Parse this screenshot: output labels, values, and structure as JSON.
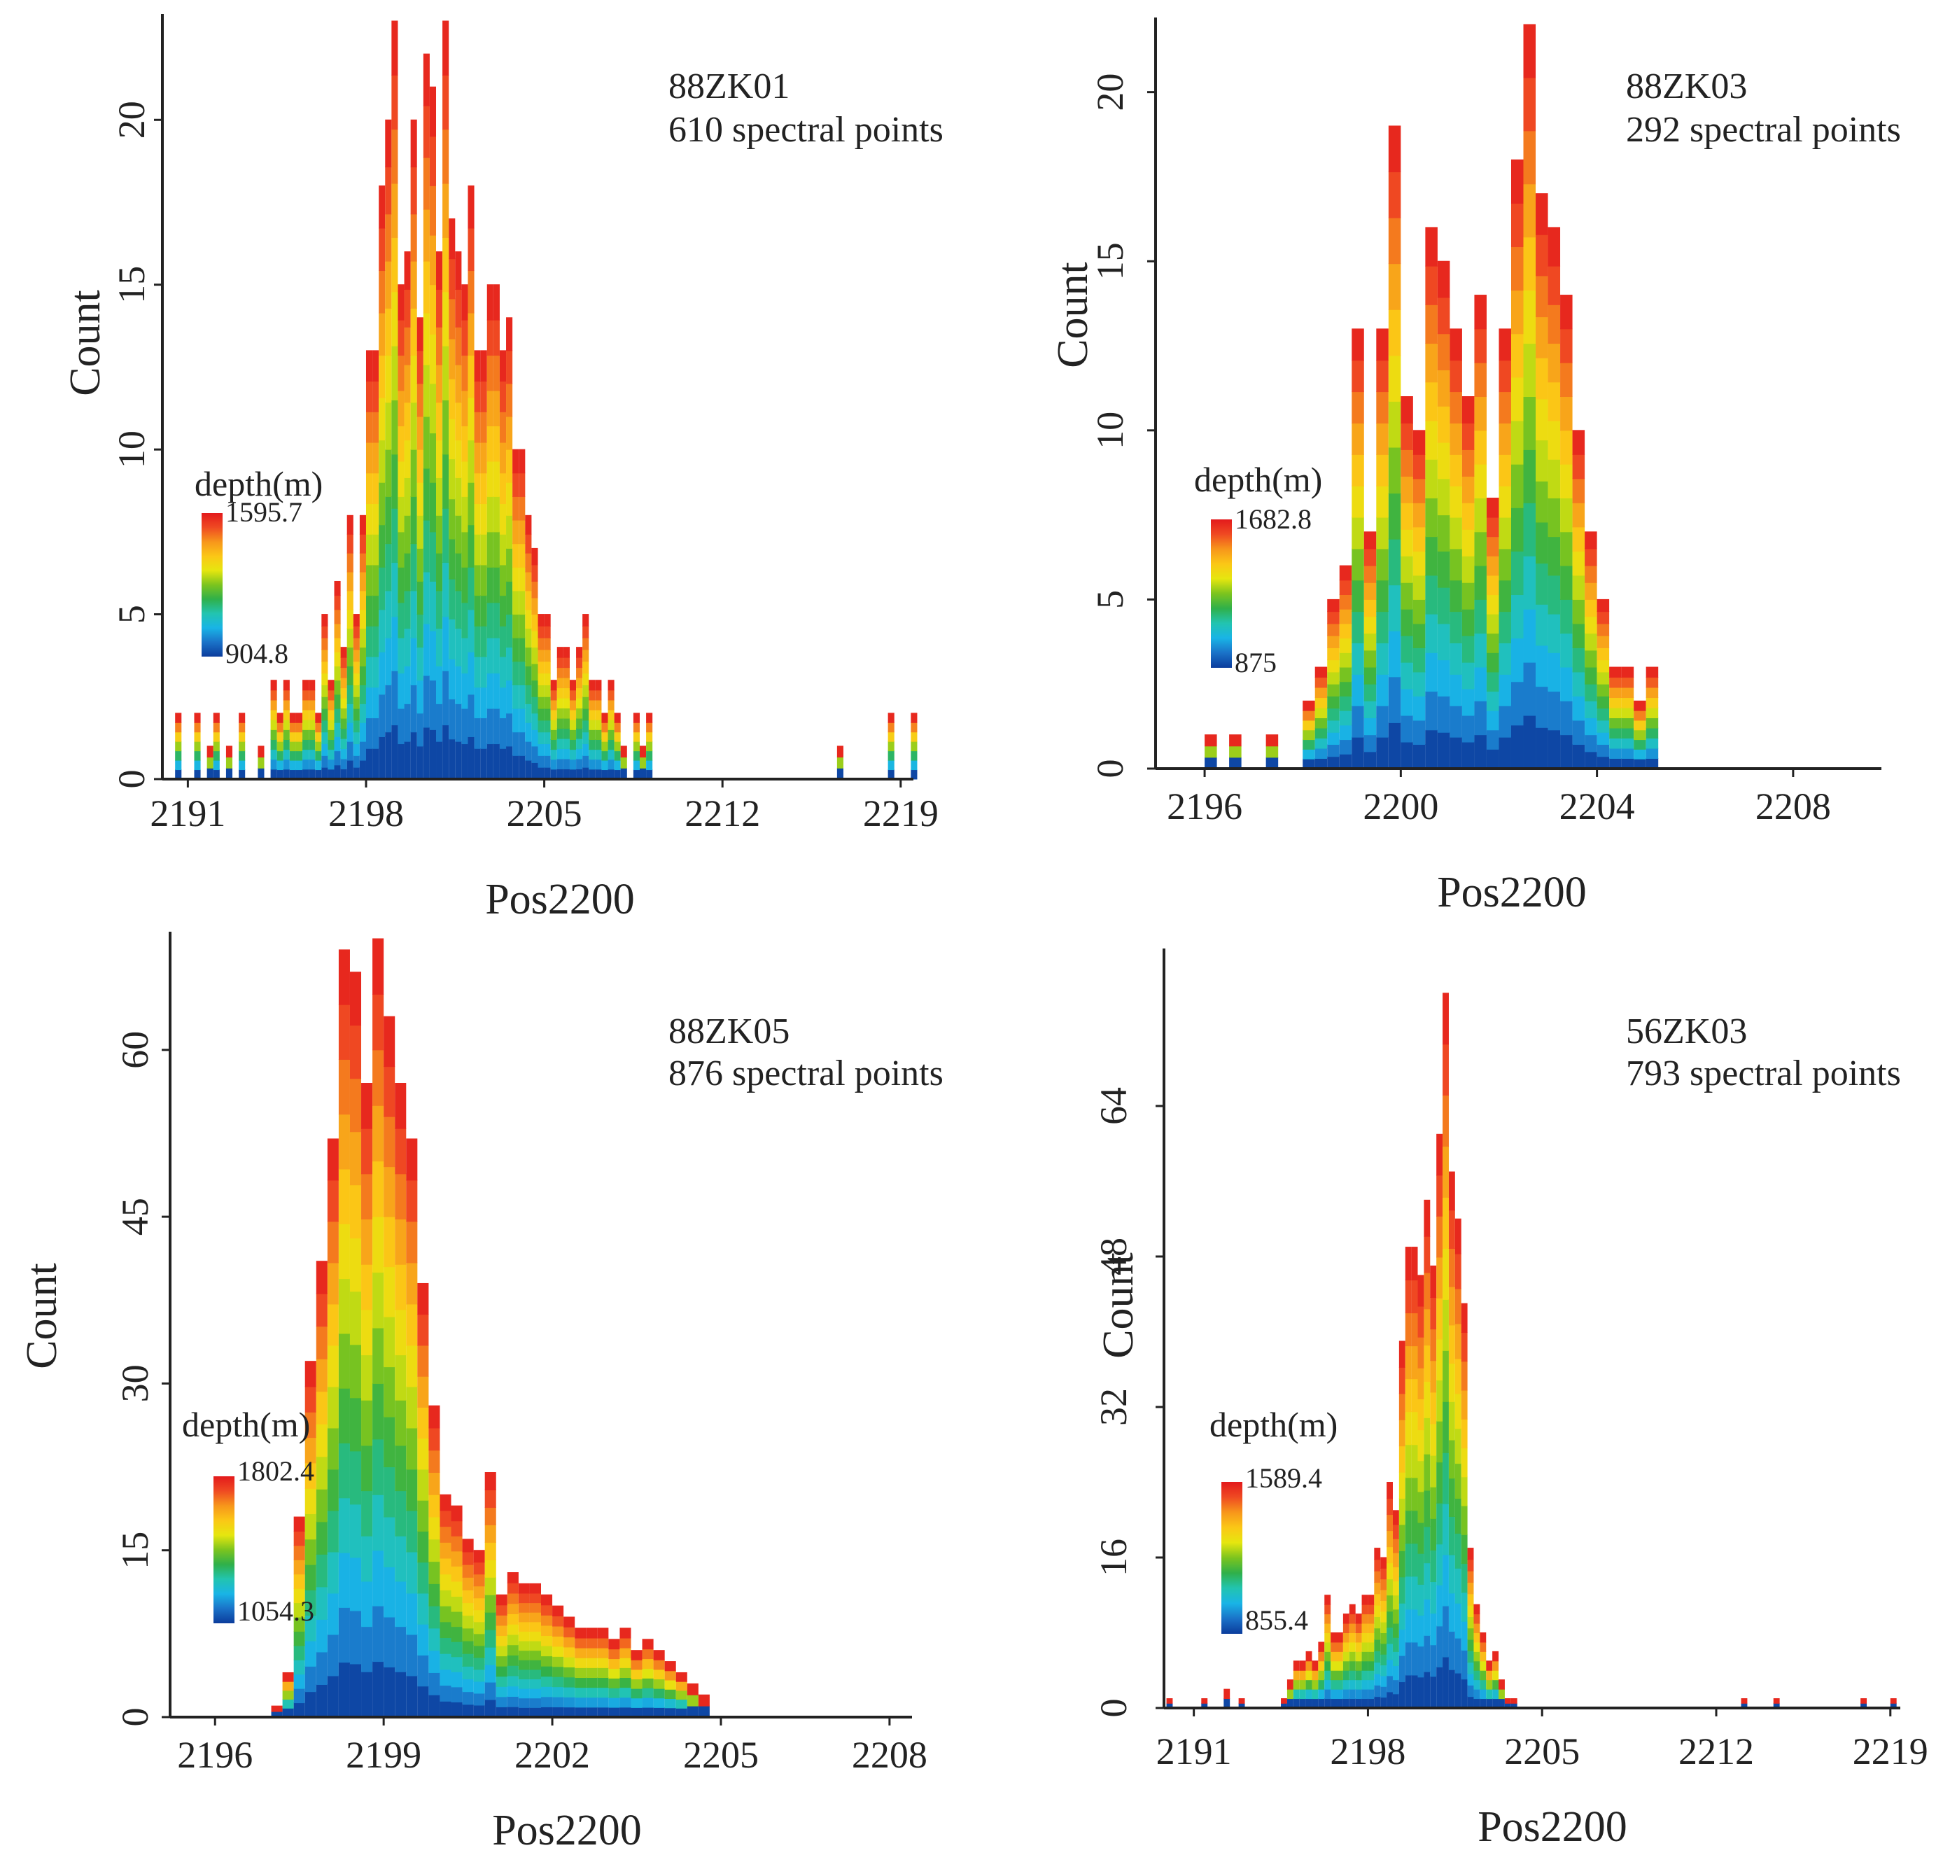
{
  "figure": {
    "depth_colormap": [
      "#0b3c9c",
      "#1a72c8",
      "#19b4e6",
      "#22c4b0",
      "#2fb04a",
      "#7cc41e",
      "#e6e60f",
      "#fbc716",
      "#f7961b",
      "#ef4a22",
      "#e31a1c"
    ]
  },
  "chart_data": [
    {
      "type": "bar",
      "subtype": "stacked-histogram-colored-by-depth",
      "title": "88ZK01",
      "subtitle": "610 spectral points",
      "xlabel": "Pos2200",
      "ylabel": "Count",
      "xlim": [
        2190.0,
        2219.5
      ],
      "ylim": [
        0,
        23
      ],
      "xticks": [
        2191,
        2198,
        2205,
        2212,
        2219
      ],
      "yticks": [
        0,
        5,
        10,
        15,
        20
      ],
      "bin_width": 0.25,
      "bin_start": 2190.25,
      "counts": [
        0,
        2,
        0,
        0,
        2,
        0,
        1,
        2,
        0,
        1,
        0,
        2,
        0,
        0,
        1,
        0,
        3,
        2,
        3,
        2,
        2,
        3,
        3,
        2,
        5,
        3,
        6,
        4,
        8,
        5,
        8,
        13,
        13,
        18,
        20,
        23,
        15,
        16,
        20,
        14,
        22,
        21,
        16,
        23,
        17,
        16,
        15,
        18,
        13,
        13,
        15,
        15,
        13,
        14,
        10,
        10,
        8,
        7,
        5,
        5,
        3,
        4,
        4,
        3,
        4,
        5,
        3,
        3,
        2,
        3,
        2,
        1,
        0,
        2,
        1,
        2,
        0,
        0,
        0,
        0,
        0,
        0,
        0,
        0,
        0,
        0,
        0,
        0,
        0,
        0,
        0,
        0,
        0,
        0,
        0,
        0,
        0,
        0,
        0,
        0,
        0,
        0,
        0,
        0,
        0,
        0,
        0,
        0,
        0,
        0,
        0,
        0,
        0,
        0,
        0,
        0,
        0,
        0
      ],
      "sparse_bars": [
        {
          "x": 2216.5,
          "count": 1
        },
        {
          "x": 2218.5,
          "count": 2
        },
        {
          "x": 2219.4,
          "count": 2
        }
      ],
      "color_scale": {
        "title": "depth(m)",
        "max_label": "1595.7",
        "min_label": "904.8",
        "max": 1595.7,
        "min": 904.8
      }
    },
    {
      "type": "bar",
      "subtype": "stacked-histogram-colored-by-depth",
      "title": "88ZK03",
      "subtitle": "292 spectral points",
      "xlabel": "Pos2200",
      "ylabel": "Count",
      "xlim": [
        2195.0,
        2209.8
      ],
      "ylim": [
        0,
        22
      ],
      "xticks": [
        2196,
        2200,
        2204,
        2208
      ],
      "yticks": [
        0,
        5,
        10,
        15,
        20
      ],
      "bin_width": 0.25,
      "bin_start": 2195.75,
      "counts": [
        0,
        1,
        0,
        1,
        0,
        0,
        1,
        0,
        0,
        2,
        3,
        5,
        6,
        13,
        7,
        13,
        19,
        11,
        10,
        16,
        15,
        13,
        11,
        14,
        8,
        13,
        18,
        22,
        17,
        16,
        14,
        10,
        7,
        5,
        3,
        3,
        2,
        3,
        0,
        0,
        0,
        0,
        0,
        0,
        0,
        0,
        0,
        0,
        0,
        0,
        0,
        0,
        0,
        0,
        0,
        0
      ],
      "color_scale": {
        "title": "depth(m)",
        "max_label": "1682.8",
        "min_label": "875",
        "max": 1682.8,
        "min": 875
      }
    },
    {
      "type": "bar",
      "subtype": "stacked-histogram-colored-by-depth",
      "title": "88ZK05",
      "subtitle": "876 spectral points",
      "xlabel": "Pos2200",
      "ylabel": "Count",
      "xlim": [
        2195.2,
        2208.4
      ],
      "ylim": [
        0,
        70
      ],
      "xticks": [
        2196,
        2199,
        2202,
        2205,
        2208
      ],
      "yticks": [
        0,
        15,
        30,
        45,
        60
      ],
      "bin_width": 0.2,
      "bin_start": 2197.0,
      "counts": [
        1,
        4,
        18,
        32,
        41,
        52,
        69,
        67,
        57,
        70,
        63,
        57,
        52,
        39,
        28,
        20,
        19,
        16,
        15,
        22,
        11,
        13,
        12,
        12,
        11,
        10,
        9,
        8,
        8,
        8,
        7,
        8,
        6,
        7,
        6,
        5,
        4,
        3,
        2,
        0,
        0,
        0,
        0,
        0,
        0,
        0,
        0,
        0,
        0,
        0,
        0,
        0,
        0,
        0,
        0,
        0,
        0
      ],
      "color_scale": {
        "title": "depth(m)",
        "max_label": "1802.4",
        "min_label": "1054.3",
        "max": 1802.4,
        "min": 1054.3
      }
    },
    {
      "type": "bar",
      "subtype": "stacked-histogram-colored-by-depth",
      "title": "56ZK03",
      "subtitle": "793 spectral points",
      "xlabel": "Pos2200",
      "ylabel": "Count",
      "xlim": [
        2189.8,
        2219.4
      ],
      "ylim": [
        0,
        80
      ],
      "xticks": [
        2191,
        2198,
        2205,
        2212,
        2219
      ],
      "yticks": [
        0,
        16,
        32,
        48,
        64
      ],
      "bin_width": 0.25,
      "bin_start": 2194.5,
      "counts": [
        1,
        3,
        5,
        5,
        6,
        5,
        7,
        12,
        8,
        8,
        10,
        11,
        10,
        12,
        12,
        17,
        16,
        24,
        21,
        39,
        49,
        49,
        46,
        54,
        47,
        61,
        76,
        57,
        52,
        43,
        17,
        11,
        8,
        5,
        6,
        3,
        1,
        1,
        0,
        0,
        0,
        0,
        0,
        0,
        0,
        0,
        0,
        0,
        0,
        0,
        0,
        0,
        0,
        0,
        0,
        0,
        0,
        0,
        0,
        0,
        0,
        0,
        0,
        0,
        0,
        0,
        0,
        0,
        0,
        0,
        0,
        0,
        0,
        0,
        0,
        0,
        0,
        0,
        0,
        0,
        0,
        0,
        0,
        0,
        0,
        0,
        0,
        0,
        0,
        0,
        0,
        0,
        0,
        0,
        0,
        0,
        0,
        0,
        0,
        0,
        0,
        0
      ],
      "sparse_bars": [
        {
          "x": 2189.9,
          "count": 1
        },
        {
          "x": 2191.3,
          "count": 1
        },
        {
          "x": 2192.2,
          "count": 2
        },
        {
          "x": 2192.8,
          "count": 1
        },
        {
          "x": 2213.0,
          "count": 1
        },
        {
          "x": 2214.3,
          "count": 1
        },
        {
          "x": 2217.8,
          "count": 1
        },
        {
          "x": 2219.0,
          "count": 1
        }
      ],
      "color_scale": {
        "title": "depth(m)",
        "max_label": "1589.4",
        "min_label": "855.4",
        "max": 1589.4,
        "min": 855.4
      }
    }
  ]
}
